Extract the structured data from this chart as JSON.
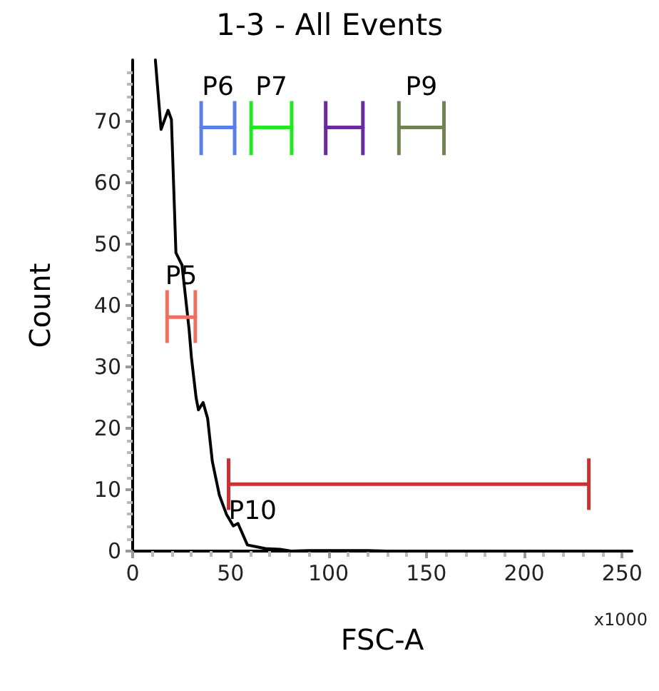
{
  "chart_data": {
    "type": "line",
    "title": "1-3 - All Events",
    "xlabel": "FSC-A",
    "ylabel": "Count",
    "annotations": [
      "x1000"
    ],
    "xlim": [
      0,
      255
    ],
    "xticks": [
      0,
      50,
      100,
      150,
      200,
      250
    ],
    "ylim": [
      0,
      80
    ],
    "yticks": [
      0,
      10,
      20,
      30,
      40,
      50,
      60,
      70
    ],
    "grid": false,
    "legend": false,
    "marker": "none",
    "line_style": "solid",
    "series": [
      {
        "color": "#000000",
        "x": [
          11.6,
          14.5,
          18.1,
          19.8,
          22.1,
          25.2,
          28.8,
          30,
          32.4,
          33.6,
          36,
          38.3,
          40.7,
          44.3,
          47.9,
          51.4,
          53.8,
          58.6,
          63.3,
          67.9,
          75.2,
          81,
          90,
          100,
          110,
          120,
          130,
          250
        ],
        "values": [
          80,
          68.7,
          71.8,
          70.3,
          48.6,
          46.6,
          36.2,
          31.6,
          25,
          23,
          24.2,
          21.6,
          14.6,
          9.1,
          6,
          4.1,
          4.5,
          1,
          0.7,
          0.4,
          0.3,
          0,
          0.1,
          0.1,
          0.1,
          0.1,
          0,
          0
        ]
      },
      {
        "name": "P5",
        "color": "#f07060",
        "x": [
          17.6,
          32
        ],
        "values": [
          38.1,
          38.1
        ],
        "errors": [
          [
            33.9,
            42.5
          ],
          [
            33.9,
            42.5
          ]
        ]
      },
      {
        "name": "P6",
        "color": "#5b7fe6",
        "x": [
          35,
          52.1
        ],
        "values": [
          69,
          69
        ],
        "errors": [
          [
            64.5,
            73.3
          ],
          [
            64.5,
            73.3
          ]
        ]
      },
      {
        "name": "P7",
        "color": "#22e822",
        "x": [
          60.5,
          81.2
        ],
        "values": [
          69,
          69
        ],
        "errors": [
          [
            64.5,
            73.3
          ],
          [
            64.5,
            73.3
          ]
        ]
      },
      {
        "color": "#6a2aa0",
        "x": [
          98.6,
          117.6
        ],
        "values": [
          69,
          69
        ],
        "errors": [
          [
            64.5,
            73.3
          ],
          [
            64.5,
            73.3
          ]
        ]
      },
      {
        "name": "P9",
        "color": "#6f8452",
        "x": [
          136,
          159
        ],
        "values": [
          69,
          69
        ],
        "errors": [
          [
            64.5,
            73.3
          ],
          [
            64.5,
            73.3
          ]
        ]
      },
      {
        "name": "P10",
        "color": "#c83232",
        "x": [
          49,
          233
        ],
        "values": [
          10.9,
          10.9
        ],
        "errors": [
          [
            6.7,
            15.1
          ],
          [
            6.7,
            15.1
          ]
        ]
      }
    ]
  }
}
